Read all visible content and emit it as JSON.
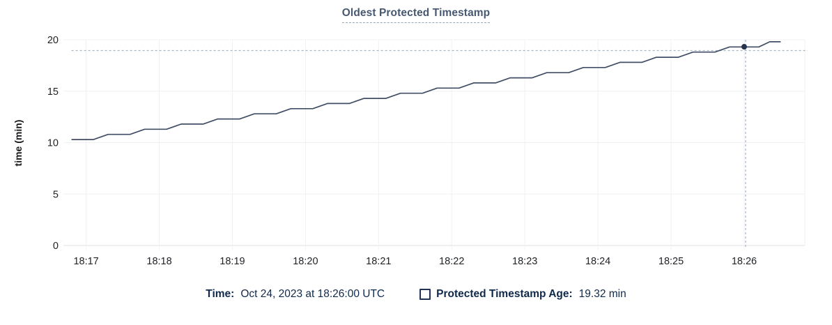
{
  "title": "Oldest Protected Timestamp",
  "footer": {
    "time_label": "Time:",
    "time_value": "Oct 24, 2023 at 18:26:00 UTC",
    "series_label": "Protected Timestamp Age:",
    "series_value": "19.32 min"
  },
  "colors": {
    "title": "#475872",
    "title_underline": "#97a3b7",
    "line": "#414e66",
    "hover_dot": "#26334d",
    "crosshair": "#a4b5c4",
    "grid": "#eff1f4",
    "grid_zero": "#dbdfe4",
    "axis_text": "#202327",
    "footer_text": "#10294a"
  },
  "chart_data": {
    "type": "line",
    "title": "Oldest Protected Timestamp",
    "ylabel": "time (min)",
    "ylim": [
      0,
      20
    ],
    "y_ticks": [
      0,
      5,
      10,
      15,
      20
    ],
    "x_ticks": [
      "18:17",
      "18:18",
      "18:19",
      "18:20",
      "18:21",
      "18:22",
      "18:23",
      "18:24",
      "18:25",
      "18:26"
    ],
    "grid": true,
    "series": [
      {
        "name": "Protected Timestamp Age",
        "unit": "min",
        "points": [
          [
            "18:16:48",
            10.3
          ],
          [
            "18:17:06",
            10.3
          ],
          [
            "18:17:18",
            10.8
          ],
          [
            "18:17:36",
            10.8
          ],
          [
            "18:17:48",
            11.3
          ],
          [
            "18:18:06",
            11.3
          ],
          [
            "18:18:18",
            11.8
          ],
          [
            "18:18:36",
            11.8
          ],
          [
            "18:18:48",
            12.3
          ],
          [
            "18:19:06",
            12.3
          ],
          [
            "18:19:18",
            12.8
          ],
          [
            "18:19:36",
            12.8
          ],
          [
            "18:19:48",
            13.3
          ],
          [
            "18:20:06",
            13.3
          ],
          [
            "18:20:18",
            13.8
          ],
          [
            "18:20:36",
            13.8
          ],
          [
            "18:20:48",
            14.3
          ],
          [
            "18:21:06",
            14.3
          ],
          [
            "18:21:18",
            14.8
          ],
          [
            "18:21:36",
            14.8
          ],
          [
            "18:21:48",
            15.3
          ],
          [
            "18:22:06",
            15.3
          ],
          [
            "18:22:18",
            15.8
          ],
          [
            "18:22:36",
            15.8
          ],
          [
            "18:22:48",
            16.3
          ],
          [
            "18:23:06",
            16.3
          ],
          [
            "18:23:18",
            16.8
          ],
          [
            "18:23:36",
            16.8
          ],
          [
            "18:23:48",
            17.3
          ],
          [
            "18:24:06",
            17.3
          ],
          [
            "18:24:18",
            17.8
          ],
          [
            "18:24:36",
            17.8
          ],
          [
            "18:24:48",
            18.3
          ],
          [
            "18:25:06",
            18.3
          ],
          [
            "18:25:18",
            18.8
          ],
          [
            "18:25:36",
            18.8
          ],
          [
            "18:25:48",
            19.3
          ],
          [
            "18:26:12",
            19.3
          ],
          [
            "18:26:21",
            19.8
          ],
          [
            "18:26:30",
            19.8
          ]
        ]
      }
    ],
    "hover_point": {
      "time": "18:26:00",
      "value": 19.32
    }
  }
}
